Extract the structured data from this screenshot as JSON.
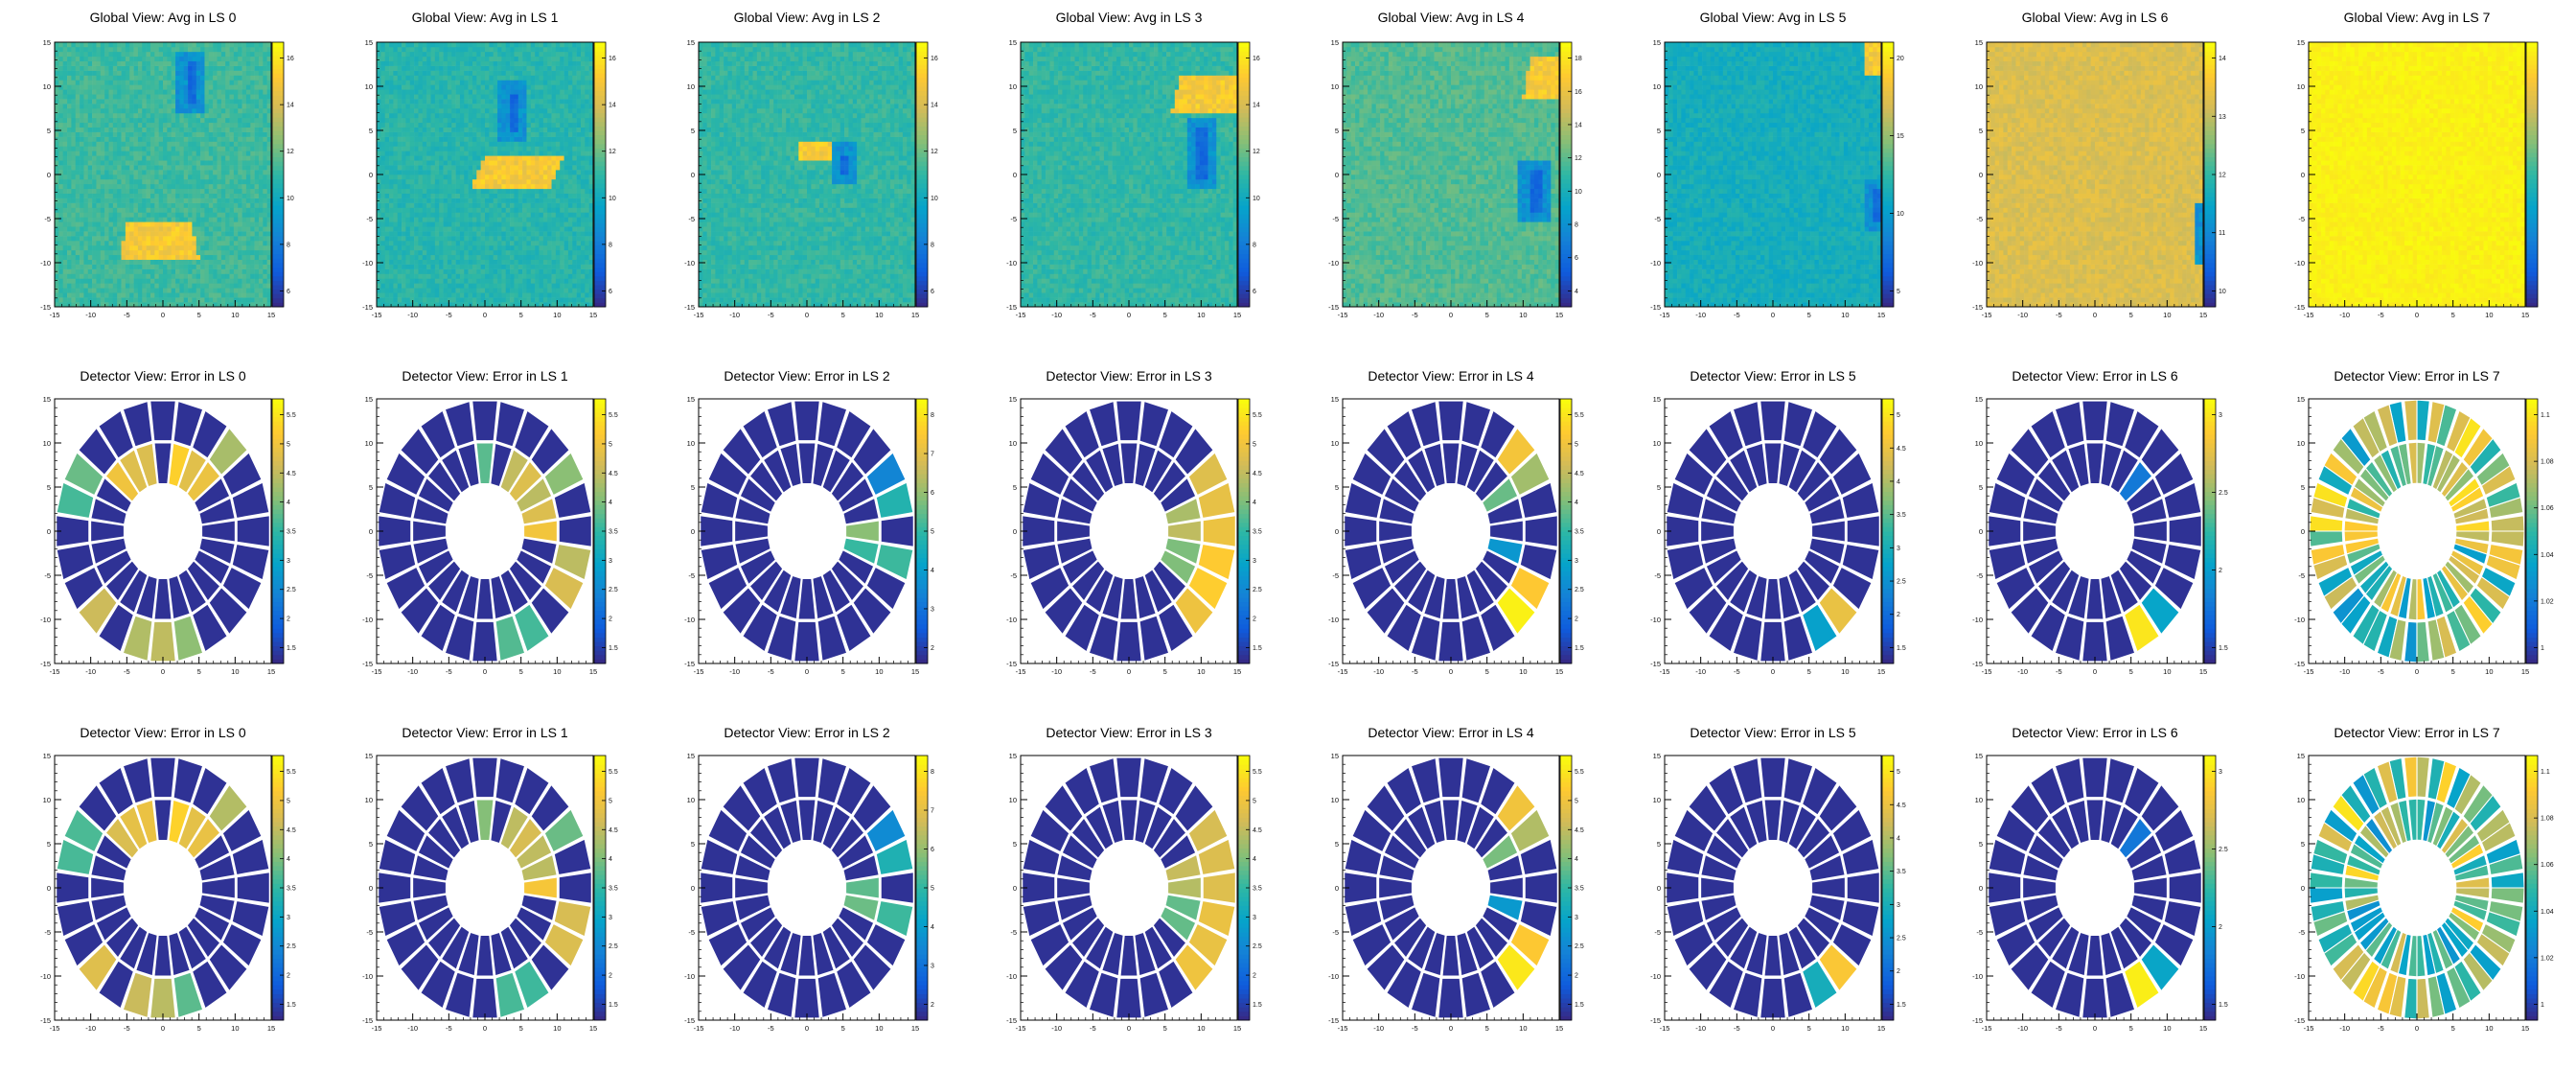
{
  "figure": {
    "rows": [
      {
        "kind": "global",
        "panels": [
          {
            "title": "Global View: Avg in LS  0",
            "z_ticks": [
              "6",
              "8",
              "10",
              "12",
              "14",
              "16"
            ]
          },
          {
            "title": "Global View: Avg in LS  1",
            "z_ticks": [
              "6",
              "8",
              "10",
              "12",
              "14",
              "16"
            ]
          },
          {
            "title": "Global View: Avg in LS  2",
            "z_ticks": [
              "6",
              "8",
              "10",
              "12",
              "14",
              "16"
            ]
          },
          {
            "title": "Global View: Avg in LS  3",
            "z_ticks": [
              "6",
              "8",
              "10",
              "12",
              "14",
              "16"
            ]
          },
          {
            "title": "Global View: Avg in LS  4",
            "z_ticks": [
              "4",
              "6",
              "8",
              "10",
              "12",
              "14",
              "16",
              "18"
            ]
          },
          {
            "title": "Global View: Avg in LS  5",
            "z_ticks": [
              "5",
              "10",
              "15",
              "20"
            ]
          },
          {
            "title": "Global View: Avg in LS  6",
            "z_ticks": [
              "10",
              "11",
              "12",
              "13",
              "14"
            ]
          },
          {
            "title": "Global View: Avg in LS  7",
            "z_ticks": []
          }
        ]
      },
      {
        "kind": "detector",
        "panels": [
          {
            "title": "Detector View: Error in LS  0",
            "z_ticks": [
              "1.5",
              "2",
              "2.5",
              "3",
              "3.5",
              "4",
              "4.5",
              "5",
              "5.5"
            ]
          },
          {
            "title": "Detector View: Error in LS  1",
            "z_ticks": [
              "1.5",
              "2",
              "2.5",
              "3",
              "3.5",
              "4",
              "4.5",
              "5",
              "5.5"
            ]
          },
          {
            "title": "Detector View: Error in LS  2",
            "z_ticks": [
              "2",
              "3",
              "4",
              "5",
              "6",
              "7",
              "8"
            ]
          },
          {
            "title": "Detector View: Error in LS  3",
            "z_ticks": [
              "1.5",
              "2",
              "2.5",
              "3",
              "3.5",
              "4",
              "4.5",
              "5",
              "5.5"
            ]
          },
          {
            "title": "Detector View: Error in LS  4",
            "z_ticks": [
              "1.5",
              "2",
              "2.5",
              "3",
              "3.5",
              "4",
              "4.5",
              "5",
              "5.5"
            ]
          },
          {
            "title": "Detector View: Error in LS  5",
            "z_ticks": [
              "1.5",
              "2",
              "2.5",
              "3",
              "3.5",
              "4",
              "4.5",
              "5"
            ]
          },
          {
            "title": "Detector View: Error in LS  6",
            "z_ticks": [
              "1.5",
              "2",
              "2.5",
              "3"
            ]
          },
          {
            "title": "Detector View: Error in LS  7",
            "z_ticks": [
              "1",
              "1.02",
              "1.04",
              "1.06",
              "1.08",
              "1.1"
            ]
          }
        ]
      },
      {
        "kind": "detector",
        "panels": [
          {
            "title": "Detector View: Error in LS  0",
            "z_ticks": [
              "1.5",
              "2",
              "2.5",
              "3",
              "3.5",
              "4",
              "4.5",
              "5",
              "5.5"
            ]
          },
          {
            "title": "Detector View: Error in LS  1",
            "z_ticks": [
              "1.5",
              "2",
              "2.5",
              "3",
              "3.5",
              "4",
              "4.5",
              "5",
              "5.5"
            ]
          },
          {
            "title": "Detector View: Error in LS  2",
            "z_ticks": [
              "2",
              "3",
              "4",
              "5",
              "6",
              "7",
              "8"
            ]
          },
          {
            "title": "Detector View: Error in LS  3",
            "z_ticks": [
              "1.5",
              "2",
              "2.5",
              "3",
              "3.5",
              "4",
              "4.5",
              "5",
              "5.5"
            ]
          },
          {
            "title": "Detector View: Error in LS  4",
            "z_ticks": [
              "1.5",
              "2",
              "2.5",
              "3",
              "3.5",
              "4",
              "4.5",
              "5",
              "5.5"
            ]
          },
          {
            "title": "Detector View: Error in LS  5",
            "z_ticks": [
              "1.5",
              "2",
              "2.5",
              "3",
              "3.5",
              "4",
              "4.5",
              "5"
            ]
          },
          {
            "title": "Detector View: Error in LS  6",
            "z_ticks": [
              "1.5",
              "2",
              "2.5",
              "3"
            ]
          },
          {
            "title": "Detector View: Error in LS  7",
            "z_ticks": [
              "1",
              "1.02",
              "1.04",
              "1.06",
              "1.08",
              "1.1"
            ]
          }
        ]
      }
    ]
  },
  "chart_data": {
    "type": "heatmap",
    "layout": "3 rows x 8 columns",
    "x_ticks": [
      "-15",
      "-10",
      "-5",
      "0",
      "5",
      "10",
      "15"
    ],
    "y_ticks": [
      "-15",
      "-10",
      "-5",
      "0",
      "5",
      "10",
      "15"
    ],
    "xlim": [
      -15,
      15
    ],
    "ylim": [
      -15,
      15
    ],
    "colormap": {
      "name": "kBird",
      "stops": [
        "#352a87",
        "#0f5cdd",
        "#1481d6",
        "#06a4ca",
        "#2eb7a4",
        "#87bf77",
        "#d1bb59",
        "#fec832",
        "#f9fb0e"
      ]
    },
    "global_views": [
      {
        "ls": 0,
        "baseline": 0.52,
        "hot_region": [
          [
            -6,
            -9.5
          ],
          [
            5,
            -9.5
          ],
          [
            4,
            -5.5
          ],
          [
            -5,
            -5.5
          ]
        ],
        "cold_region": [
          2,
          7,
          6,
          14
        ]
      },
      {
        "ls": 1,
        "baseline": 0.48,
        "hot_region": [
          [
            -2,
            -1.5
          ],
          [
            9,
            -1.5
          ],
          [
            11,
            2
          ],
          [
            0,
            2
          ]
        ],
        "cold_region": [
          2,
          3.5,
          6,
          10.5
        ]
      },
      {
        "ls": 2,
        "baseline": 0.5,
        "hot_region": [
          [
            -1,
            1.5
          ],
          [
            7,
            1.5
          ],
          [
            6,
            3.5
          ],
          [
            -1,
            3.5
          ]
        ],
        "cold_region": [
          3.5,
          -1,
          7,
          3.5
        ]
      },
      {
        "ls": 3,
        "baseline": 0.5,
        "hot_region": [
          [
            6,
            7
          ],
          [
            16,
            7
          ],
          [
            15,
            11.5
          ],
          [
            7,
            11.5
          ]
        ],
        "cold_region": [
          8,
          -1.5,
          12,
          6.5
        ]
      },
      {
        "ls": 4,
        "baseline": 0.55,
        "hot_region": [
          [
            10,
            8.5
          ],
          [
            16,
            8.5
          ],
          [
            15,
            13.5
          ],
          [
            11,
            13.5
          ]
        ],
        "cold_region": [
          9.5,
          -5.5,
          14,
          1.5
        ]
      },
      {
        "ls": 5,
        "baseline": 0.43,
        "hot_region": [
          [
            12.5,
            11
          ],
          [
            16,
            11
          ],
          [
            16,
            15
          ],
          [
            13,
            15
          ]
        ],
        "cold_region": [
          12.5,
          -6.5,
          16,
          -0.5
        ]
      },
      {
        "ls": 6,
        "baseline": 0.78,
        "hot_region": null,
        "cold_region": [
          14,
          -10,
          16,
          -3
        ]
      },
      {
        "ls": 7,
        "baseline": 1.0,
        "hot_region": null,
        "cold_region": null
      }
    ],
    "detector_geometry": {
      "inner_radius": 5.3,
      "middle_radius": 10.2,
      "outer_radius": 15,
      "y_scale": 1.0,
      "segments_per_ring": 24
    },
    "detector_views": [
      {
        "ls": 0,
        "hot_inner": [
          [
            3,
            5,
            0.8
          ],
          [
            7,
            10,
            0.8
          ],
          [
            5,
            6,
            0.9
          ]
        ],
        "hot_outer": [
          [
            3,
            4,
            0.7
          ],
          [
            10,
            12,
            0.55
          ],
          [
            15,
            16,
            0.75
          ],
          [
            17,
            19,
            0.7
          ],
          [
            19,
            20,
            0.6
          ]
        ]
      },
      {
        "ls": 1,
        "hot_inner": [
          [
            0,
            1,
            0.85
          ],
          [
            1,
            5,
            0.75
          ],
          [
            6,
            7,
            0.6
          ]
        ],
        "hot_outer": [
          [
            2,
            3,
            0.6
          ],
          [
            22,
            24,
            0.75
          ],
          [
            19,
            21,
            0.55
          ]
        ]
      },
      {
        "ls": 2,
        "hot_inner": [
          [
            0,
            1,
            0.6
          ],
          [
            23,
            24,
            0.55
          ]
        ],
        "hot_outer": [
          [
            1,
            2,
            0.45
          ],
          [
            2,
            3,
            0.3
          ],
          [
            23,
            24,
            0.5
          ]
        ]
      },
      {
        "ls": 3,
        "hot_inner": [
          [
            0,
            2,
            0.7
          ],
          [
            22,
            24,
            0.6
          ]
        ],
        "hot_outer": [
          [
            0,
            3,
            0.8
          ],
          [
            21,
            24,
            0.85
          ]
        ]
      },
      {
        "ls": 4,
        "hot_inner": [
          [
            2,
            3,
            0.6
          ],
          [
            23,
            24,
            0.35
          ]
        ],
        "hot_outer": [
          [
            3,
            4,
            0.85
          ],
          [
            2,
            3,
            0.7
          ],
          [
            22,
            23,
            0.9
          ],
          [
            21,
            22,
            0.95
          ]
        ]
      },
      {
        "ls": 5,
        "hot_inner": [],
        "hot_outer": [
          [
            21,
            22,
            0.85
          ],
          [
            20,
            21,
            0.4
          ]
        ]
      },
      {
        "ls": 6,
        "hot_inner": [
          [
            3,
            4,
            0.2
          ]
        ],
        "hot_outer": [
          [
            20,
            21,
            0.98
          ],
          [
            21,
            22,
            0.35
          ]
        ]
      },
      {
        "ls": 7,
        "mode": "random",
        "hot_inner": [],
        "hot_outer": []
      }
    ]
  }
}
